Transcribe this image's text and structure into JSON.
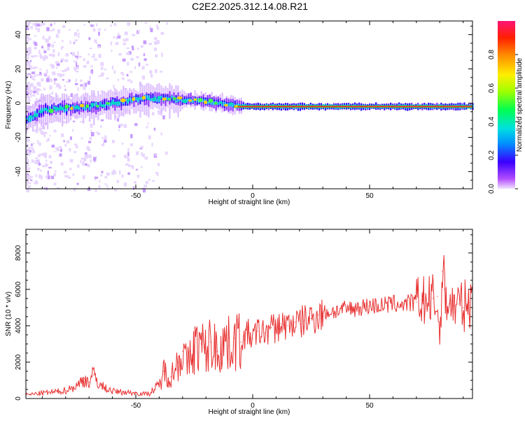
{
  "title": "C2E2.2025.312.14.08.R21",
  "chart_data": [
    {
      "type": "heatmap",
      "xlabel": "Height of straight line (km)",
      "ylabel": "Frequency (Hz)",
      "xlim": [
        -97,
        94
      ],
      "ylim": [
        -50,
        48
      ],
      "xticks": [
        -50,
        0,
        50
      ],
      "yticks": [
        -40,
        -20,
        0,
        20,
        40
      ],
      "colorbar": {
        "label": "Normalized spectral amplitude",
        "range": [
          0,
          1
        ],
        "ticks": [
          0.0,
          0.2,
          0.4,
          0.6,
          0.8
        ],
        "tick_labels": [
          "0.0",
          "0.2",
          "0.4",
          "0.6",
          "0.8"
        ]
      },
      "ridge": {
        "x": [
          -97,
          -90,
          -80,
          -70,
          -60,
          -50,
          -40,
          -30,
          -20,
          -10,
          0,
          10,
          20,
          30,
          40,
          50,
          60,
          70,
          80,
          94
        ],
        "frequency": [
          -10,
          -4,
          -3,
          -2,
          0,
          2,
          3,
          2,
          1,
          -1,
          -2,
          -2,
          -2,
          -2,
          -2,
          -2,
          -2,
          -2,
          -2,
          -2
        ]
      }
    },
    {
      "type": "line",
      "xlabel": "Height of straight line (km)",
      "ylabel": "SNR (10 * v/v)",
      "xlim": [
        -97,
        94
      ],
      "ylim": [
        0,
        9300
      ],
      "xticks": [
        -50,
        0,
        50
      ],
      "yticks": [
        0,
        2000,
        4000,
        6000,
        8000
      ],
      "color": "#e83030",
      "series": [
        {
          "x": [
            -97,
            -90,
            -85,
            -80,
            -75,
            -72,
            -70,
            -68,
            -65,
            -60,
            -55,
            -50,
            -45,
            -42,
            -40,
            -38,
            -35,
            -32,
            -30,
            -28,
            -25,
            -22,
            -20,
            -18,
            -15,
            -12,
            -10,
            -8,
            -5,
            -2,
            0,
            2,
            5,
            8,
            10,
            12,
            15,
            18,
            20,
            22,
            25,
            28,
            30,
            35,
            40,
            45,
            50,
            55,
            60,
            65,
            70,
            73,
            75,
            77,
            78,
            79,
            80,
            81,
            82,
            84,
            86,
            88,
            90,
            92,
            94
          ],
          "y": [
            200,
            300,
            350,
            450,
            700,
            1100,
            900,
            1300,
            700,
            400,
            350,
            300,
            250,
            500,
            700,
            1500,
            1200,
            2000,
            2600,
            1800,
            2800,
            3000,
            2500,
            3100,
            2600,
            3200,
            2900,
            3300,
            3100,
            3600,
            3300,
            3700,
            3600,
            3900,
            3800,
            4100,
            4000,
            4200,
            4100,
            4300,
            4400,
            4600,
            4700,
            4800,
            4900,
            5000,
            5100,
            5100,
            5200,
            5200,
            5300,
            5400,
            5200,
            5500,
            4800,
            5600,
            3000,
            7000,
            6000,
            5200,
            5100,
            5200,
            5000,
            5300,
            5200
          ]
        }
      ]
    }
  ]
}
